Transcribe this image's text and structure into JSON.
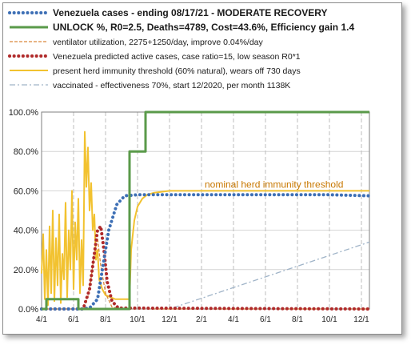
{
  "chart_data": {
    "type": "line",
    "title": "",
    "xlabel": "",
    "ylabel": "",
    "ylim": [
      0,
      100
    ],
    "y_ticks": [
      "0.0%",
      "20.0%",
      "40.0%",
      "60.0%",
      "80.0%",
      "100.0%"
    ],
    "x_ticks": [
      "4/1",
      "6/1",
      "8/1",
      "10/1",
      "12/1",
      "2/1",
      "4/1",
      "6/1",
      "8/1",
      "10/1",
      "12/1"
    ],
    "x_range": [
      0,
      20.5
    ],
    "grid": "vertical dashed at month ticks, horizontal at 20% steps",
    "legend_position": "top",
    "annotation": "nominal herd immunity threshold",
    "series": [
      {
        "name": "Venezuela cases - ending 08/17/21 - MODERATE RECOVERY",
        "color": "#3d6fb5",
        "style": "dotted",
        "x": [
          0,
          2.5,
          3.0,
          3.5,
          3.8,
          4.2,
          4.7,
          5.2,
          6,
          8,
          10,
          12,
          14,
          16,
          18,
          20.5
        ],
        "y": [
          0,
          0,
          0.5,
          5,
          20,
          40,
          53,
          57.5,
          58,
          58,
          58,
          58,
          58,
          58,
          58,
          57.5
        ]
      },
      {
        "name": "UNLOCK %, R0=2.5,  Deaths=4789, Cost=43.6%, Efficiency gain 1.4",
        "color": "#5a9a4a",
        "style": "solid",
        "x": [
          0,
          0.3,
          0.3,
          2.3,
          2.3,
          5.5,
          5.5,
          6.5,
          6.5,
          20.5
        ],
        "y": [
          0,
          0,
          5,
          5,
          0,
          0,
          80,
          80,
          100,
          100
        ]
      },
      {
        "name": "ventilator utilization, 2275+1250/day, improve 0.04%/day",
        "color": "#d9883a",
        "style": "dashed",
        "x": [
          0,
          2.6,
          2.9,
          3.1,
          3.3,
          3.5,
          3.7,
          4.0,
          4.4,
          5,
          20.5
        ],
        "y": [
          0,
          0,
          6,
          16,
          28,
          36,
          22,
          8,
          1,
          0,
          0
        ]
      },
      {
        "name": "Venezuela predicted active cases, case ratio=15, low season R0*1",
        "color": "#b02a2a",
        "style": "dotted",
        "x": [
          0,
          2.6,
          3.0,
          3.3,
          3.5,
          3.7,
          3.9,
          4.1,
          4.4,
          4.8,
          20.5
        ],
        "y": [
          0,
          0,
          10,
          28,
          40,
          42,
          30,
          14,
          4,
          0.5,
          0
        ]
      },
      {
        "name": "present herd immunity threshold (60% natural), wears off 730 days",
        "color": "#f2c230",
        "style": "solid",
        "x": [
          0,
          0.1,
          0.2,
          0.3,
          0.4,
          0.5,
          0.6,
          0.7,
          0.8,
          0.9,
          1.0,
          1.1,
          1.2,
          1.3,
          1.4,
          1.5,
          1.6,
          1.7,
          1.8,
          1.9,
          2.0,
          2.1,
          2.2,
          2.3,
          2.4,
          2.5,
          2.6,
          2.7,
          2.8,
          2.9,
          3.0,
          3.1,
          3.2,
          3.3,
          3.4,
          3.5,
          3.6,
          3.8,
          4.0,
          4.3,
          4.6,
          5.0,
          5.3,
          5.5,
          5.6,
          5.8,
          6.0,
          6.3,
          6.6,
          7,
          8,
          10,
          12,
          14,
          16,
          18,
          20.5
        ],
        "y": [
          18,
          38,
          5,
          30,
          2,
          42,
          8,
          50,
          4,
          36,
          12,
          48,
          3,
          28,
          15,
          54,
          6,
          40,
          20,
          60,
          10,
          44,
          25,
          56,
          8,
          35,
          12,
          90,
          62,
          82,
          50,
          64,
          40,
          48,
          25,
          30,
          15,
          10,
          7,
          6,
          5,
          5,
          5,
          5,
          30,
          45,
          52,
          56,
          58,
          59,
          60,
          60,
          60,
          60,
          60,
          60,
          60
        ]
      },
      {
        "name": "vaccinated - effectiveness 70%, start 12/2020, per month 1138K",
        "color": "#a0b4c8",
        "style": "dashdot",
        "x": [
          0,
          8.0,
          20.5
        ],
        "y": [
          0,
          0,
          34
        ]
      }
    ]
  }
}
